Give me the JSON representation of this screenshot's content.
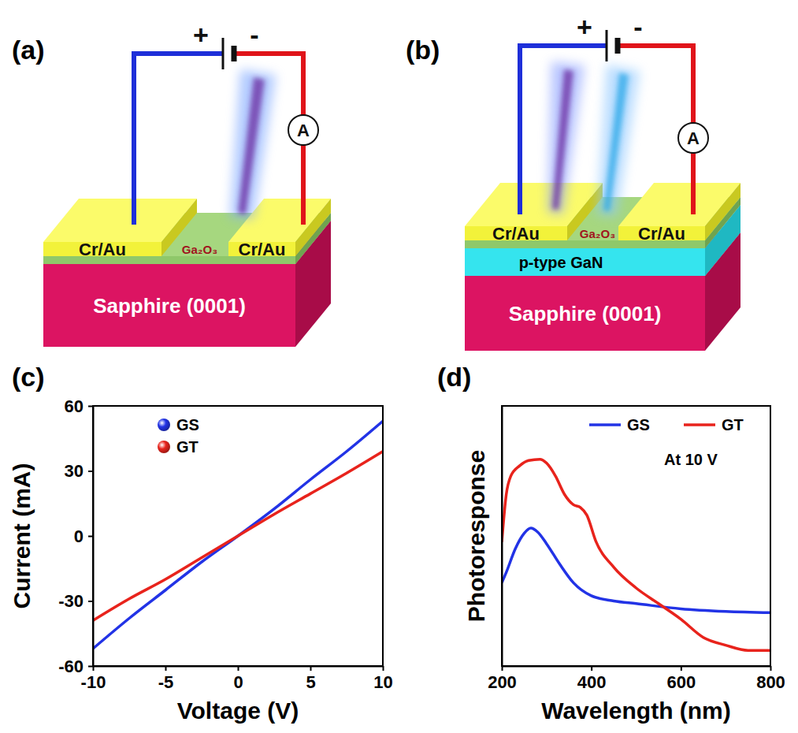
{
  "diagrams": [
    {
      "panel_label": "(a)",
      "battery": [
        "+",
        "-"
      ],
      "meter": "A",
      "electrodes": [
        "Cr/Au",
        "Cr/Au"
      ],
      "film": "Ga₂O₃",
      "layers": [
        "Sapphire (0001)"
      ]
    },
    {
      "panel_label": "(b)",
      "battery": [
        "+",
        "-"
      ],
      "meter": "A",
      "electrodes": [
        "Cr/Au",
        "Cr/Au"
      ],
      "film": "Ga₂O₃",
      "layers": [
        "Sapphire (0001)",
        "p-type GaN"
      ]
    }
  ],
  "chart_data": [
    {
      "panel_label": "(c)",
      "type": "line",
      "x_label": "Voltage (V)",
      "y_label": "Current (mA)",
      "x": [
        -10,
        -7.5,
        -5,
        -2.5,
        0,
        2.5,
        5,
        7.5,
        10
      ],
      "series": [
        {
          "name": "GS",
          "color": "#2233e6",
          "marker": "circle",
          "values": [
            -52,
            -38,
            -25,
            -12,
            0,
            12.5,
            26,
            39,
            53
          ]
        },
        {
          "name": "GT",
          "color": "#e8231c",
          "marker": "circle",
          "values": [
            -39,
            -29,
            -20,
            -10,
            0,
            10,
            19.5,
            29,
            39
          ]
        }
      ],
      "xlim": [
        -10,
        10
      ],
      "xticks": [
        -10,
        -5,
        0,
        5,
        10
      ],
      "ylim": [
        -60,
        60
      ],
      "yticks": [
        -60,
        -30,
        0,
        30,
        60
      ],
      "legend": "upper left",
      "grid": false
    },
    {
      "panel_label": "(d)",
      "type": "line",
      "x_label": "Wavelength (nm)",
      "y_label": "Photoresponse",
      "annotation": "At 10 V",
      "series": [
        {
          "name": "GS",
          "color": "#2233e6",
          "x": [
            200,
            210,
            230,
            250,
            265,
            280,
            300,
            330,
            360,
            400,
            450,
            500,
            600,
            700,
            800
          ],
          "values": [
            32,
            36,
            45,
            51,
            53,
            51.5,
            47,
            39,
            32,
            27,
            25,
            24,
            22,
            21,
            20.5
          ]
        },
        {
          "name": "GT",
          "color": "#e8231c",
          "x": [
            200,
            210,
            220,
            240,
            260,
            285,
            300,
            320,
            340,
            360,
            375,
            390,
            410,
            450,
            500,
            550,
            600,
            650,
            700,
            750,
            800
          ],
          "values": [
            47.7,
            66,
            73,
            77,
            79,
            79.5,
            78,
            73,
            66,
            62,
            61,
            58,
            48,
            38,
            30,
            24,
            18,
            11,
            8,
            6,
            6
          ]
        }
      ],
      "xlim": [
        200,
        800
      ],
      "xticks": [
        200,
        400,
        600,
        800
      ],
      "ylim": [
        0,
        100
      ],
      "yticks": [],
      "tick_labels": "x",
      "legend": "upper right",
      "grid": false
    }
  ]
}
